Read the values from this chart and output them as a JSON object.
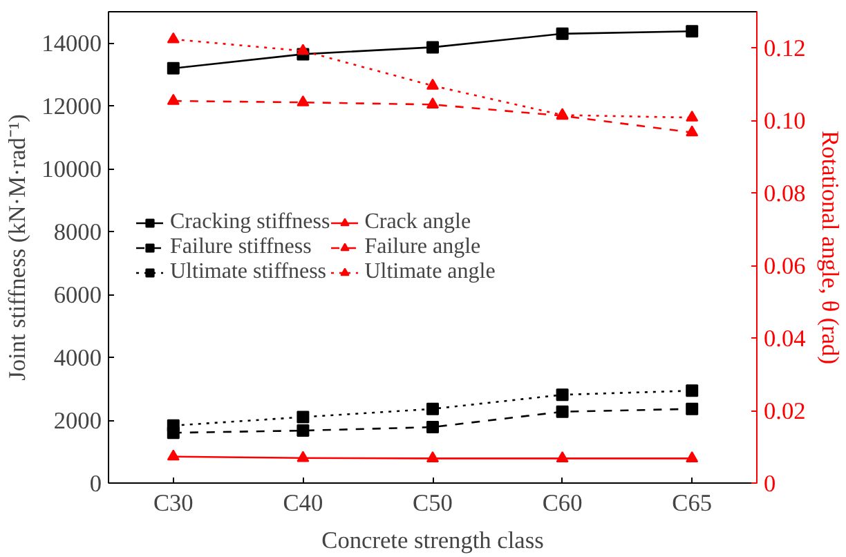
{
  "chart_data": {
    "type": "line",
    "xlabel": "Concrete strength class",
    "ylabel": "Joint stiffness (kN·M·rad⁻¹)",
    "y2label": "Rotational angle, θ (rad)",
    "categories": [
      "C30",
      "C40",
      "C50",
      "C60",
      "C65"
    ],
    "ylim": [
      0,
      15000
    ],
    "yticks": [
      0,
      2000,
      4000,
      6000,
      8000,
      10000,
      12000,
      14000
    ],
    "y2lim": [
      0,
      0.13
    ],
    "y2ticks": [
      {
        "value": 0,
        "label": "0"
      },
      {
        "value": 0.02,
        "label": "0.02"
      },
      {
        "value": 0.04,
        "label": "0.04"
      },
      {
        "value": 0.06,
        "label": "0.06"
      },
      {
        "value": 0.08,
        "label": "0.08"
      },
      {
        "value": 0.1,
        "label": "0.10"
      },
      {
        "value": 0.12,
        "label": "0.12"
      }
    ],
    "grid": false,
    "legend": "left",
    "series": [
      {
        "name": "Cracking stiffness",
        "color": "#000000",
        "marker": "square",
        "line_style": "solid",
        "values": [
          13200,
          13650,
          13870,
          14300,
          14380
        ]
      },
      {
        "name": "Failure stiffness",
        "color": "#000000",
        "marker": "square",
        "line_style": "dashed",
        "values": [
          1600,
          1670,
          1780,
          2270,
          2360
        ]
      },
      {
        "name": "Ultimate stiffness",
        "color": "#000000",
        "marker": "square",
        "line_style": "dotted",
        "values": [
          1830,
          2100,
          2360,
          2810,
          2940
        ]
      },
      {
        "name": "Crack angle",
        "color": "#ff0000",
        "marker": "triangle",
        "line_style": "solid",
        "axis": "y2",
        "values": [
          0.0073,
          0.0069,
          0.0068,
          0.0068,
          0.0068
        ]
      },
      {
        "name": "Failure angle",
        "color": "#ff0000",
        "marker": "triangle",
        "line_style": "dashed",
        "axis": "y2",
        "values": [
          0.1054,
          0.105,
          0.1044,
          0.1013,
          0.0967
        ]
      },
      {
        "name": "Ultimate angle",
        "color": "#ff0000",
        "marker": "triangle",
        "line_style": "dotted",
        "axis": "y2",
        "values": [
          0.1224,
          0.1192,
          0.1096,
          0.1015,
          0.1008
        ]
      }
    ]
  }
}
